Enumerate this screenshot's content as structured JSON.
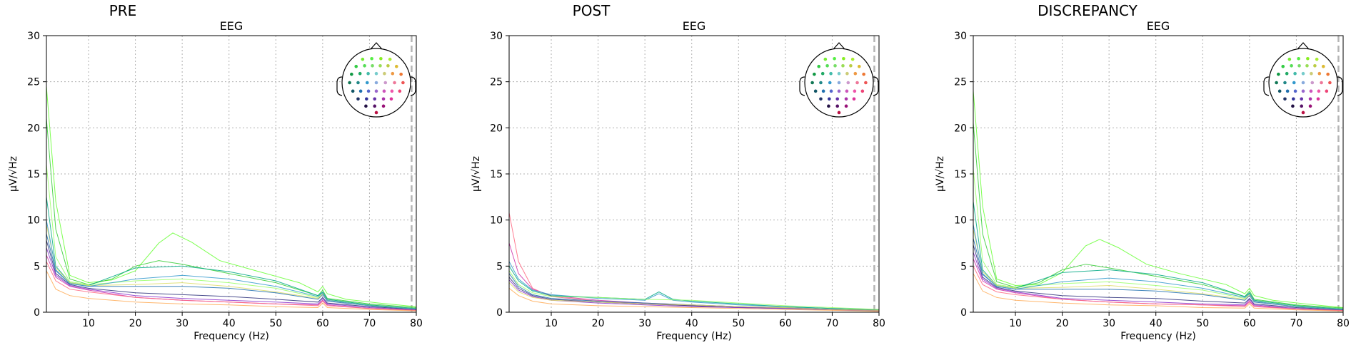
{
  "chart_data": [
    {
      "type": "line",
      "title": "PRE",
      "subtitle": "EEG",
      "xlabel": "Frequency (Hz)",
      "ylabel": "µV/√Hz",
      "xlim": [
        1,
        80
      ],
      "ylim": [
        0,
        30
      ],
      "xticks": [
        "10",
        "20",
        "30",
        "40",
        "50",
        "60",
        "70",
        "80"
      ],
      "yticks": [
        "0",
        "5",
        "10",
        "15",
        "20",
        "25",
        "30"
      ],
      "grid": true,
      "legend": "sensor-topomap top-right",
      "cutoff_hz": 79,
      "series": [
        {
          "color": "#66ff33",
          "x": [
            1,
            3,
            6,
            10,
            15,
            20,
            25,
            28,
            32,
            38,
            45,
            55,
            59,
            60,
            61,
            65,
            72,
            80
          ],
          "y": [
            24.5,
            12,
            4.0,
            3.2,
            3.5,
            4.5,
            7.5,
            8.6,
            7.6,
            5.6,
            4.6,
            3.2,
            2.2,
            2.8,
            2.0,
            1.4,
            1.0,
            0.6
          ]
        },
        {
          "color": "#33cc33",
          "x": [
            1,
            3,
            6,
            10,
            15,
            20,
            25,
            30,
            40,
            50,
            59,
            60,
            61,
            70,
            80
          ],
          "y": [
            21,
            9,
            3.6,
            3.0,
            3.6,
            5.0,
            5.6,
            5.2,
            4.2,
            3.2,
            1.8,
            2.4,
            1.5,
            0.9,
            0.5
          ]
        },
        {
          "color": "#99ff66",
          "x": [
            1,
            3,
            6,
            10,
            20,
            30,
            40,
            50,
            59,
            60,
            61,
            70,
            80
          ],
          "y": [
            16,
            6,
            3.3,
            3.0,
            3.4,
            3.6,
            3.2,
            2.6,
            1.6,
            2.1,
            1.4,
            0.8,
            0.4
          ]
        },
        {
          "color": "#00a884",
          "x": [
            1,
            3,
            6,
            10,
            20,
            30,
            40,
            50,
            59,
            60,
            61,
            70,
            80
          ],
          "y": [
            12.5,
            5,
            3.2,
            2.9,
            4.8,
            5.0,
            4.4,
            3.4,
            1.8,
            2.2,
            1.4,
            0.8,
            0.4
          ]
        },
        {
          "color": "#1f6fae",
          "x": [
            1,
            3,
            6,
            10,
            20,
            30,
            40,
            50,
            59,
            60,
            61,
            70,
            80
          ],
          "y": [
            8.5,
            4.5,
            3.1,
            2.8,
            2.8,
            2.8,
            2.6,
            2.1,
            1.4,
            1.9,
            1.2,
            0.7,
            0.3
          ]
        },
        {
          "color": "#2c2f7a",
          "x": [
            1,
            3,
            6,
            10,
            20,
            30,
            40,
            50,
            59,
            60,
            61,
            70,
            80
          ],
          "y": [
            7.8,
            4.2,
            3.0,
            2.6,
            2.1,
            1.9,
            1.7,
            1.4,
            1.1,
            1.6,
            1.0,
            0.6,
            0.3
          ]
        },
        {
          "color": "#8833cc",
          "x": [
            1,
            3,
            6,
            10,
            20,
            30,
            40,
            50,
            59,
            60,
            61,
            70,
            80
          ],
          "y": [
            7.0,
            4.0,
            2.9,
            2.5,
            1.8,
            1.5,
            1.3,
            1.1,
            0.9,
            1.5,
            0.9,
            0.5,
            0.25
          ]
        },
        {
          "color": "#cc33aa",
          "x": [
            1,
            3,
            6,
            10,
            20,
            30,
            40,
            50,
            59,
            60,
            61,
            70,
            80
          ],
          "y": [
            6.2,
            3.8,
            2.8,
            2.4,
            1.6,
            1.3,
            1.1,
            0.9,
            0.8,
            1.3,
            0.8,
            0.4,
            0.2
          ]
        },
        {
          "color": "#ff6680",
          "x": [
            1,
            3,
            6,
            10,
            20,
            30,
            40,
            50,
            59,
            60,
            61,
            70,
            80
          ],
          "y": [
            5.5,
            3.4,
            2.5,
            2.2,
            1.6,
            1.3,
            1.1,
            0.9,
            0.7,
            1.2,
            0.7,
            0.4,
            0.2
          ]
        },
        {
          "color": "#ffaa55",
          "x": [
            1,
            3,
            6,
            10,
            20,
            30,
            40,
            50,
            59,
            60,
            61,
            70,
            80
          ],
          "y": [
            4.5,
            2.5,
            1.8,
            1.5,
            1.1,
            0.9,
            0.8,
            0.6,
            0.5,
            1.0,
            0.5,
            0.3,
            0.15
          ]
        },
        {
          "color": "#dddd66",
          "x": [
            1,
            3,
            6,
            10,
            20,
            30,
            40,
            50,
            59,
            60,
            61,
            70,
            80
          ],
          "y": [
            9.5,
            4.8,
            3.2,
            2.9,
            3.0,
            3.2,
            2.8,
            2.2,
            1.5,
            2.0,
            1.3,
            0.7,
            0.35
          ]
        },
        {
          "color": "#3399cc",
          "x": [
            1,
            3,
            6,
            10,
            20,
            30,
            40,
            50,
            59,
            60,
            61,
            70,
            80
          ],
          "y": [
            10,
            4.6,
            3.1,
            2.8,
            3.6,
            4.0,
            3.6,
            2.8,
            1.7,
            2.1,
            1.3,
            0.7,
            0.35
          ]
        }
      ]
    },
    {
      "type": "line",
      "title": "POST",
      "subtitle": "EEG",
      "xlabel": "Frequency (Hz)",
      "ylabel": "µV/√Hz",
      "xlim": [
        1,
        80
      ],
      "ylim": [
        0,
        30
      ],
      "xticks": [
        "10",
        "20",
        "30",
        "40",
        "50",
        "60",
        "70",
        "80"
      ],
      "yticks": [
        "0",
        "5",
        "10",
        "15",
        "20",
        "25",
        "30"
      ],
      "grid": true,
      "legend": "sensor-topomap top-right",
      "cutoff_hz": 79,
      "series": [
        {
          "color": "#ff6680",
          "x": [
            1,
            3,
            6,
            10,
            20,
            30,
            40,
            50,
            60,
            70,
            80
          ],
          "y": [
            10.8,
            5.5,
            2.6,
            1.7,
            1.2,
            0.9,
            0.7,
            0.5,
            0.5,
            0.3,
            0.2
          ]
        },
        {
          "color": "#cc33aa",
          "x": [
            1,
            3,
            6,
            10,
            20,
            30,
            40,
            50,
            60,
            70,
            80
          ],
          "y": [
            7.5,
            4.2,
            2.5,
            1.8,
            1.3,
            1.0,
            0.8,
            0.6,
            0.5,
            0.3,
            0.2
          ]
        },
        {
          "color": "#3399cc",
          "x": [
            1,
            3,
            6,
            10,
            20,
            30,
            33,
            36,
            40,
            50,
            60,
            70,
            80
          ],
          "y": [
            5.5,
            3.6,
            2.4,
            1.9,
            1.5,
            1.3,
            2.0,
            1.3,
            1.1,
            0.8,
            0.6,
            0.4,
            0.25
          ]
        },
        {
          "color": "#00a884",
          "x": [
            1,
            3,
            6,
            10,
            20,
            30,
            33,
            36,
            40,
            50,
            60,
            70,
            80
          ],
          "y": [
            5.0,
            3.4,
            2.3,
            1.8,
            1.6,
            1.4,
            2.2,
            1.4,
            1.2,
            0.9,
            0.6,
            0.4,
            0.25
          ]
        },
        {
          "color": "#99ff66",
          "x": [
            1,
            3,
            6,
            10,
            20,
            30,
            40,
            50,
            60,
            70,
            80
          ],
          "y": [
            4.5,
            3.0,
            2.1,
            1.7,
            1.6,
            1.4,
            1.3,
            1.0,
            0.7,
            0.5,
            0.3
          ]
        },
        {
          "color": "#1f6fae",
          "x": [
            1,
            3,
            6,
            10,
            20,
            30,
            40,
            50,
            60,
            70,
            80
          ],
          "y": [
            4.2,
            2.8,
            1.9,
            1.5,
            1.2,
            1.0,
            0.8,
            0.6,
            0.5,
            0.3,
            0.2
          ]
        },
        {
          "color": "#2c2f7a",
          "x": [
            1,
            3,
            6,
            10,
            20,
            30,
            40,
            50,
            60,
            70,
            80
          ],
          "y": [
            3.8,
            2.6,
            1.8,
            1.4,
            1.1,
            0.9,
            0.7,
            0.5,
            0.4,
            0.3,
            0.2
          ]
        },
        {
          "color": "#8833cc",
          "x": [
            1,
            3,
            6,
            10,
            20,
            30,
            40,
            50,
            60,
            70,
            80
          ],
          "y": [
            3.5,
            2.4,
            1.7,
            1.3,
            1.0,
            0.8,
            0.6,
            0.5,
            0.4,
            0.25,
            0.15
          ]
        },
        {
          "color": "#dddd66",
          "x": [
            1,
            3,
            6,
            10,
            20,
            30,
            40,
            50,
            60,
            70,
            80
          ],
          "y": [
            3.2,
            2.2,
            1.6,
            1.3,
            1.1,
            0.9,
            0.8,
            0.6,
            0.5,
            0.3,
            0.2
          ]
        },
        {
          "color": "#ffaa55",
          "x": [
            1,
            3,
            6,
            10,
            20,
            30,
            40,
            50,
            60,
            70,
            80
          ],
          "y": [
            2.6,
            1.8,
            1.2,
            0.9,
            0.7,
            0.6,
            0.5,
            0.4,
            0.3,
            0.2,
            0.1
          ]
        }
      ]
    },
    {
      "type": "line",
      "title": "DISCREPANCY",
      "subtitle": "EEG",
      "xlabel": "Frequency (Hz)",
      "ylabel": "µV/√Hz",
      "xlim": [
        1,
        80
      ],
      "ylim": [
        0,
        30
      ],
      "xticks": [
        "10",
        "20",
        "30",
        "40",
        "50",
        "60",
        "70",
        "80"
      ],
      "yticks": [
        "0",
        "5",
        "10",
        "15",
        "20",
        "25",
        "30"
      ],
      "grid": true,
      "legend": "sensor-topomap top-right",
      "cutoff_hz": 79,
      "series": [
        {
          "color": "#66ff33",
          "x": [
            1,
            3,
            6,
            10,
            15,
            20,
            25,
            28,
            32,
            38,
            45,
            55,
            59,
            60,
            61,
            65,
            72,
            80
          ],
          "y": [
            24.0,
            11.5,
            3.6,
            2.9,
            3.0,
            4.3,
            7.2,
            7.9,
            7.0,
            5.2,
            4.2,
            3.0,
            2.0,
            2.6,
            1.8,
            1.3,
            0.9,
            0.5
          ]
        },
        {
          "color": "#33cc33",
          "x": [
            1,
            3,
            6,
            10,
            15,
            20,
            25,
            30,
            40,
            50,
            59,
            60,
            61,
            70,
            80
          ],
          "y": [
            20.5,
            8.5,
            3.3,
            2.7,
            3.2,
            4.6,
            5.2,
            4.8,
            3.9,
            3.0,
            1.7,
            2.3,
            1.4,
            0.8,
            0.45
          ]
        },
        {
          "color": "#99ff66",
          "x": [
            1,
            3,
            6,
            10,
            20,
            30,
            40,
            50,
            59,
            60,
            61,
            70,
            80
          ],
          "y": [
            15.5,
            5.6,
            3.0,
            2.7,
            3.1,
            3.3,
            2.9,
            2.4,
            1.5,
            2.0,
            1.3,
            0.7,
            0.35
          ]
        },
        {
          "color": "#00a884",
          "x": [
            1,
            3,
            6,
            10,
            20,
            30,
            40,
            50,
            59,
            60,
            61,
            70,
            80
          ],
          "y": [
            12,
            4.6,
            2.9,
            2.6,
            4.3,
            4.6,
            4.1,
            3.2,
            1.7,
            2.1,
            1.3,
            0.7,
            0.35
          ]
        },
        {
          "color": "#1f6fae",
          "x": [
            1,
            3,
            6,
            10,
            20,
            30,
            40,
            50,
            59,
            60,
            61,
            70,
            80
          ],
          "y": [
            8.0,
            4.1,
            2.8,
            2.5,
            2.5,
            2.5,
            2.3,
            1.9,
            1.3,
            1.8,
            1.1,
            0.6,
            0.3
          ]
        },
        {
          "color": "#2c2f7a",
          "x": [
            1,
            3,
            6,
            10,
            20,
            30,
            40,
            50,
            59,
            60,
            61,
            70,
            80
          ],
          "y": [
            7.3,
            3.8,
            2.7,
            2.3,
            1.8,
            1.6,
            1.5,
            1.2,
            1.0,
            1.5,
            0.9,
            0.5,
            0.25
          ]
        },
        {
          "color": "#8833cc",
          "x": [
            1,
            3,
            6,
            10,
            20,
            30,
            40,
            50,
            59,
            60,
            61,
            70,
            80
          ],
          "y": [
            6.5,
            3.6,
            2.6,
            2.2,
            1.5,
            1.3,
            1.1,
            0.9,
            0.8,
            1.4,
            0.8,
            0.4,
            0.2
          ]
        },
        {
          "color": "#cc33aa",
          "x": [
            1,
            3,
            6,
            10,
            20,
            30,
            40,
            50,
            59,
            60,
            61,
            70,
            80
          ],
          "y": [
            5.8,
            3.4,
            2.5,
            2.1,
            1.4,
            1.1,
            0.9,
            0.8,
            0.7,
            1.2,
            0.7,
            0.35,
            0.18
          ]
        },
        {
          "color": "#ff6680",
          "x": [
            1,
            3,
            6,
            10,
            20,
            30,
            40,
            50,
            59,
            60,
            61,
            70,
            80
          ],
          "y": [
            5.0,
            3.0,
            2.2,
            1.9,
            1.4,
            1.1,
            0.9,
            0.8,
            0.6,
            1.1,
            0.6,
            0.35,
            0.18
          ]
        },
        {
          "color": "#ffaa55",
          "x": [
            1,
            3,
            6,
            10,
            20,
            30,
            40,
            50,
            59,
            60,
            61,
            70,
            80
          ],
          "y": [
            4.2,
            2.3,
            1.6,
            1.3,
            1.0,
            0.8,
            0.7,
            0.5,
            0.45,
            0.9,
            0.45,
            0.25,
            0.12
          ]
        },
        {
          "color": "#dddd66",
          "x": [
            1,
            3,
            6,
            10,
            20,
            30,
            40,
            50,
            59,
            60,
            61,
            70,
            80
          ],
          "y": [
            9.0,
            4.4,
            2.9,
            2.6,
            2.7,
            2.9,
            2.5,
            2.0,
            1.4,
            1.9,
            1.2,
            0.6,
            0.3
          ]
        },
        {
          "color": "#3399cc",
          "x": [
            1,
            3,
            6,
            10,
            20,
            30,
            40,
            50,
            59,
            60,
            61,
            70,
            80
          ],
          "y": [
            9.5,
            4.2,
            2.8,
            2.5,
            3.3,
            3.7,
            3.3,
            2.6,
            1.6,
            2.0,
            1.2,
            0.6,
            0.3
          ]
        }
      ]
    }
  ]
}
